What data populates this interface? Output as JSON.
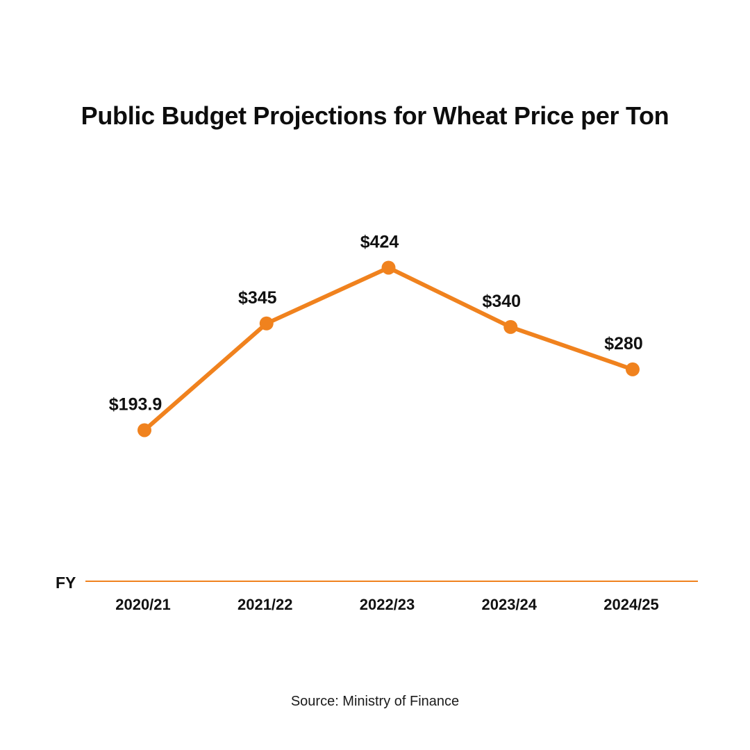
{
  "title": "Public Budget Projections for Wheat Price per Ton",
  "source": "Source: Ministry of Finance",
  "colors": {
    "line": "#F0821E",
    "text": "#111111",
    "background": "#FFFFFF"
  },
  "chart_data": {
    "type": "line",
    "title": "Public Budget Projections for Wheat Price per Ton",
    "xlabel": "FY",
    "ylabel": "",
    "categories": [
      "2020/21",
      "2021/22",
      "2022/23",
      "2023/24",
      "2024/25"
    ],
    "series": [
      {
        "values": [
          193.9,
          345,
          424,
          340,
          280
        ],
        "labels": [
          "$193.9",
          "$345",
          "$424",
          "$340",
          "$280"
        ]
      }
    ],
    "ylim": [
      -20,
      520
    ],
    "grid": false,
    "legend": "none"
  }
}
